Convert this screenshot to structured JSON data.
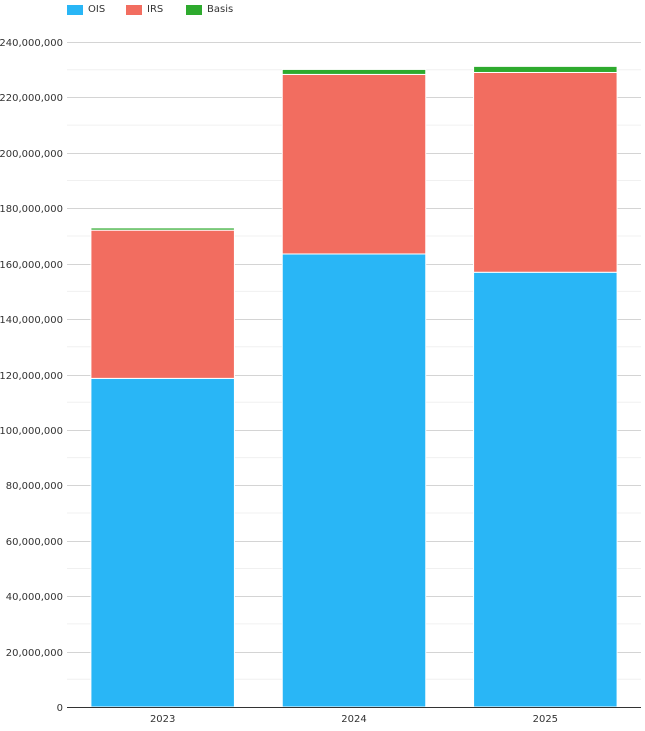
{
  "chart_data": {
    "type": "bar",
    "stacked": true,
    "title": "",
    "xlabel": "",
    "ylabel": "",
    "categories": [
      "2023",
      "2024",
      "2025"
    ],
    "series": [
      {
        "name": "OIS",
        "color": "#29b6f6",
        "values": [
          118600000,
          163500000,
          156900000
        ]
      },
      {
        "name": "IRS",
        "color": "#f26d60",
        "values": [
          53500000,
          64800000,
          72100000
        ]
      },
      {
        "name": "Basis",
        "color": "#2eaa2e",
        "values": [
          800000,
          1800000,
          2200000
        ]
      }
    ],
    "ylim": [
      0,
      240000000
    ],
    "yticks": [
      "0",
      "20,000,000",
      "40,000,000",
      "60,000,000",
      "80,000,000",
      "100,000,000",
      "120,000,000",
      "140,000,000",
      "160,000,000",
      "180,000,000",
      "200,000,000",
      "220,000,000",
      "240,000,000"
    ],
    "grid": true,
    "legend": "top-left"
  }
}
